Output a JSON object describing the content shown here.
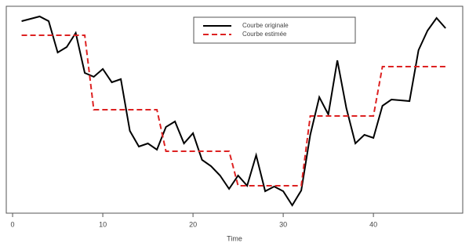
{
  "chart_data": {
    "type": "line",
    "xlabel": "Time",
    "x": [
      1,
      2,
      3,
      4,
      5,
      6,
      7,
      8,
      9,
      10,
      11,
      12,
      13,
      14,
      15,
      16,
      17,
      18,
      19,
      20,
      21,
      22,
      23,
      24,
      25,
      26,
      27,
      28,
      29,
      30,
      31,
      32,
      33,
      34,
      35,
      36,
      37,
      38,
      39,
      40,
      41,
      42,
      43,
      44,
      45,
      46,
      47,
      48
    ],
    "series": [
      {
        "name": "Courbe originale",
        "color": "#000000",
        "dash": false,
        "values": [
          245,
          248,
          251,
          245,
          205,
          212,
          230,
          179,
          174,
          184,
          167,
          171,
          105,
          85,
          89,
          81,
          110,
          117,
          89,
          102,
          68,
          60,
          48,
          31,
          48,
          35,
          74,
          28,
          34,
          28,
          10,
          29,
          100,
          148,
          126,
          195,
          134,
          89,
          100,
          96,
          137,
          145,
          144,
          143,
          208,
          233,
          249,
          236
        ]
      },
      {
        "name": "Courbe estimée",
        "color": "#dd2222",
        "dash": true,
        "values": [
          227,
          227,
          227,
          227,
          227,
          227,
          227,
          227,
          132,
          132,
          132,
          132,
          132,
          132,
          132,
          132,
          79,
          79,
          79,
          79,
          79,
          79,
          79,
          79,
          35,
          35,
          35,
          35,
          35,
          35,
          35,
          35,
          124,
          124,
          124,
          124,
          124,
          124,
          124,
          124,
          187,
          187,
          187,
          187,
          187,
          187,
          187,
          187
        ]
      }
    ],
    "xlim": [
      -0.7,
      49.9
    ],
    "xticks": [
      0,
      10,
      20,
      30,
      40
    ],
    "ylim": [
      0,
      264
    ],
    "legend": "top"
  }
}
